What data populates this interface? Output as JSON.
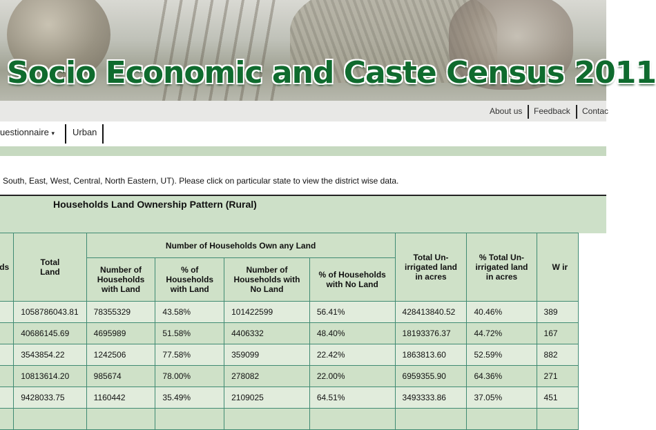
{
  "banner": {
    "title": "Socio Economic and Caste Census 2011"
  },
  "top_links": [
    "About us",
    "Feedback",
    "Contac"
  ],
  "menu": {
    "questionnaire": "uestionnaire",
    "dropdown_arrow": "▾",
    "urban": "Urban"
  },
  "instruction": "South, East, West, Central, North Eastern, UT). Please click on particular state to view the district wise data.",
  "table": {
    "title": "Households Land Ownership Pattern (Rural)",
    "headers": {
      "first_col": "lds",
      "total_land": "Total Land",
      "group": "Number of Households Own any Land",
      "hh_with_land": "Number of Households with Land",
      "pct_with_land": "% of Households with Land",
      "hh_no_land": "Number of Households with No Land",
      "pct_no_land": "% of Households with No Land",
      "total_unirrigated": "Total Un-irrigated land in acres",
      "pct_unirrigated": "% Total Un-irrigated land in acres",
      "last_col_partial": "W ir"
    },
    "rows": [
      [
        "1058786043.81",
        "78355329",
        "43.58%",
        "101422599",
        "56.41%",
        "428413840.52",
        "40.46%",
        "389"
      ],
      [
        "40686145.69",
        "4695989",
        "51.58%",
        "4406332",
        "48.40%",
        "18193376.37",
        "44.72%",
        "167"
      ],
      [
        "3543854.22",
        "1242506",
        "77.58%",
        "359099",
        "22.42%",
        "1863813.60",
        "52.59%",
        "882"
      ],
      [
        "10813614.20",
        "985674",
        "78.00%",
        "278082",
        "22.00%",
        "6959355.90",
        "64.36%",
        "271"
      ],
      [
        "9428033.75",
        "1160442",
        "35.49%",
        "2109025",
        "64.51%",
        "3493333.86",
        "37.05%",
        "451"
      ]
    ]
  }
}
